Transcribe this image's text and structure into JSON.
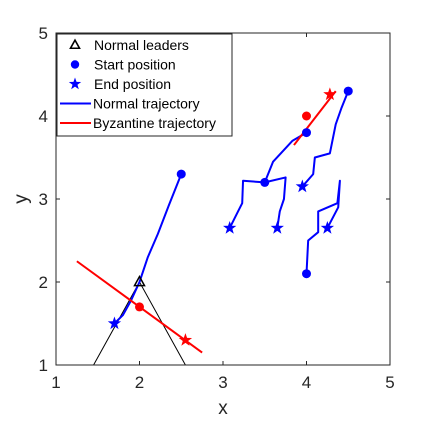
{
  "chart_data": {
    "type": "line",
    "title": "",
    "xlabel": "x",
    "ylabel": "y",
    "xlim": [
      1,
      5
    ],
    "ylim": [
      1,
      5
    ],
    "xticks": [
      1,
      2,
      3,
      4,
      5
    ],
    "yticks": [
      1,
      2,
      3,
      4,
      5
    ],
    "grid": false,
    "legend_position": "top-left",
    "colors": {
      "normal": "#0000ff",
      "byzantine": "#ff0000",
      "triangle": "#000000"
    },
    "legend": [
      {
        "label": "Normal leaders",
        "marker": "triangle",
        "color": "#000000"
      },
      {
        "label": "Start position",
        "marker": "circle",
        "color": "#0000ff"
      },
      {
        "label": "End position",
        "marker": "star",
        "color": "#0000ff"
      },
      {
        "label": "Normal trajectory",
        "marker": "line",
        "color": "#0000ff"
      },
      {
        "label": "Byzantine trajectory",
        "marker": "line",
        "color": "#ff0000"
      }
    ],
    "leader_triangle": [
      [
        1.45,
        1.0
      ],
      [
        2.0,
        2.0
      ],
      [
        2.55,
        1.0
      ]
    ],
    "leader_marker": {
      "x": 2.0,
      "y": 2.0
    },
    "normal_trajectories": [
      {
        "points": [
          [
            2.5,
            3.3
          ],
          [
            2.35,
            2.92
          ],
          [
            2.22,
            2.58
          ],
          [
            2.1,
            2.3
          ],
          [
            2.0,
            2.0
          ],
          [
            1.9,
            1.78
          ],
          [
            1.8,
            1.6
          ],
          [
            1.7,
            1.5
          ]
        ],
        "start": [
          2.5,
          3.3
        ],
        "end": [
          1.7,
          1.5
        ]
      },
      {
        "points": [
          [
            3.5,
            3.2
          ],
          [
            3.24,
            3.22
          ],
          [
            3.23,
            2.95
          ],
          [
            3.18,
            2.85
          ],
          [
            3.08,
            2.65
          ]
        ],
        "start": [
          3.5,
          3.2
        ],
        "end": [
          3.08,
          2.65
        ]
      },
      {
        "points": [
          [
            4.0,
            3.8
          ],
          [
            3.83,
            3.7
          ],
          [
            3.6,
            3.45
          ],
          [
            3.5,
            3.2
          ],
          [
            3.75,
            3.26
          ],
          [
            3.73,
            3.0
          ],
          [
            3.68,
            2.85
          ],
          [
            3.65,
            2.65
          ]
        ],
        "start": [
          4.0,
          3.8
        ],
        "end": [
          3.65,
          2.65
        ]
      },
      {
        "points": [
          [
            4.5,
            4.3
          ],
          [
            4.42,
            4.1
          ],
          [
            4.35,
            3.9
          ],
          [
            4.28,
            3.55
          ],
          [
            4.1,
            3.5
          ],
          [
            4.08,
            3.3
          ],
          [
            3.95,
            3.15
          ]
        ],
        "start": [
          4.5,
          4.3
        ],
        "end": [
          3.95,
          3.15
        ]
      },
      {
        "points": [
          [
            4.0,
            2.1
          ],
          [
            4.02,
            2.5
          ],
          [
            4.14,
            2.6
          ],
          [
            4.14,
            2.85
          ],
          [
            4.37,
            2.95
          ],
          [
            4.4,
            3.22
          ],
          [
            4.38,
            2.9
          ],
          [
            4.25,
            2.65
          ]
        ],
        "start": [
          4.0,
          2.1
        ],
        "end": [
          4.25,
          2.65
        ]
      }
    ],
    "byzantine_trajectories": [
      {
        "points": [
          [
            1.25,
            2.25
          ],
          [
            2.75,
            1.15
          ]
        ],
        "start": [
          2.0,
          1.7
        ],
        "end": [
          2.55,
          1.3
        ]
      },
      {
        "points": [
          [
            3.85,
            3.65
          ],
          [
            4.35,
            4.3
          ]
        ],
        "start": [
          4.0,
          4.0
        ],
        "end": [
          4.28,
          4.26
        ]
      }
    ]
  }
}
